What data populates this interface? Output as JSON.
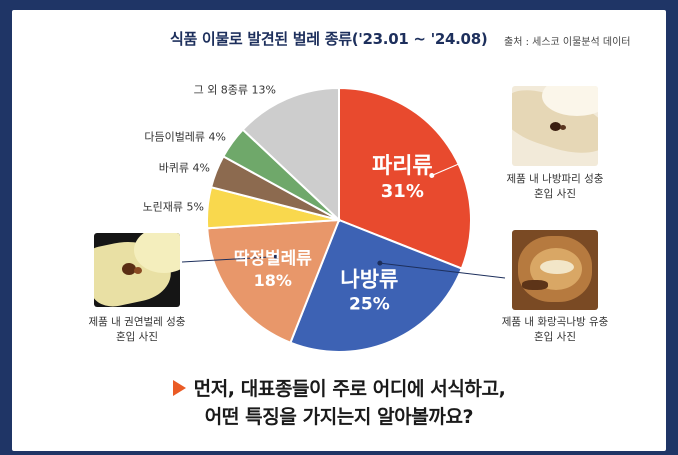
{
  "header": {
    "title": "식품 이물로 발견된 벌레 종류('23.01 ~ '24.08)",
    "source": "출처 : 세스코 이물분석 데이터"
  },
  "chart_data": {
    "type": "pie",
    "title": "식품 이물로 발견된 벌레 종류('23.01 ~ '24.08)",
    "slices": [
      {
        "label": "파리류",
        "value_label": "31%",
        "value": 31,
        "color": "#e84a2e"
      },
      {
        "label": "나방류",
        "value_label": "25%",
        "value": 25,
        "color": "#3d62b4"
      },
      {
        "label": "딱정벌레류",
        "value_label": "18%",
        "value": 18,
        "color": "#e8976a"
      },
      {
        "label": "노린재류 5%",
        "value": 5,
        "color": "#f9d84d"
      },
      {
        "label": "바퀴류 4%",
        "value": 4,
        "color": "#8c6a4f"
      },
      {
        "label": "다듬이벌레류 4%",
        "value": 4,
        "color": "#6fa86a"
      },
      {
        "label": "그 외 8종류 13%",
        "value": 13,
        "color": "#cdcdcd"
      }
    ]
  },
  "photos": [
    {
      "caption_line1": "제품 내 나방파리 성충",
      "caption_line2": "혼입 사진"
    },
    {
      "caption_line1": "제품 내 화랑곡나방 유충",
      "caption_line2": "혼입 사진"
    },
    {
      "caption_line1": "제품 내 권연벌레 성충",
      "caption_line2": "혼입 사진"
    }
  ],
  "message": {
    "line1": "먼저, 대표종들이 주로 어디에 서식하고,",
    "line2": "어떤 특징을 가지는지 알아볼까요?"
  },
  "colors": {
    "background": "#1f3566",
    "accent": "#ea5b25",
    "title": "#1d2f5c"
  }
}
